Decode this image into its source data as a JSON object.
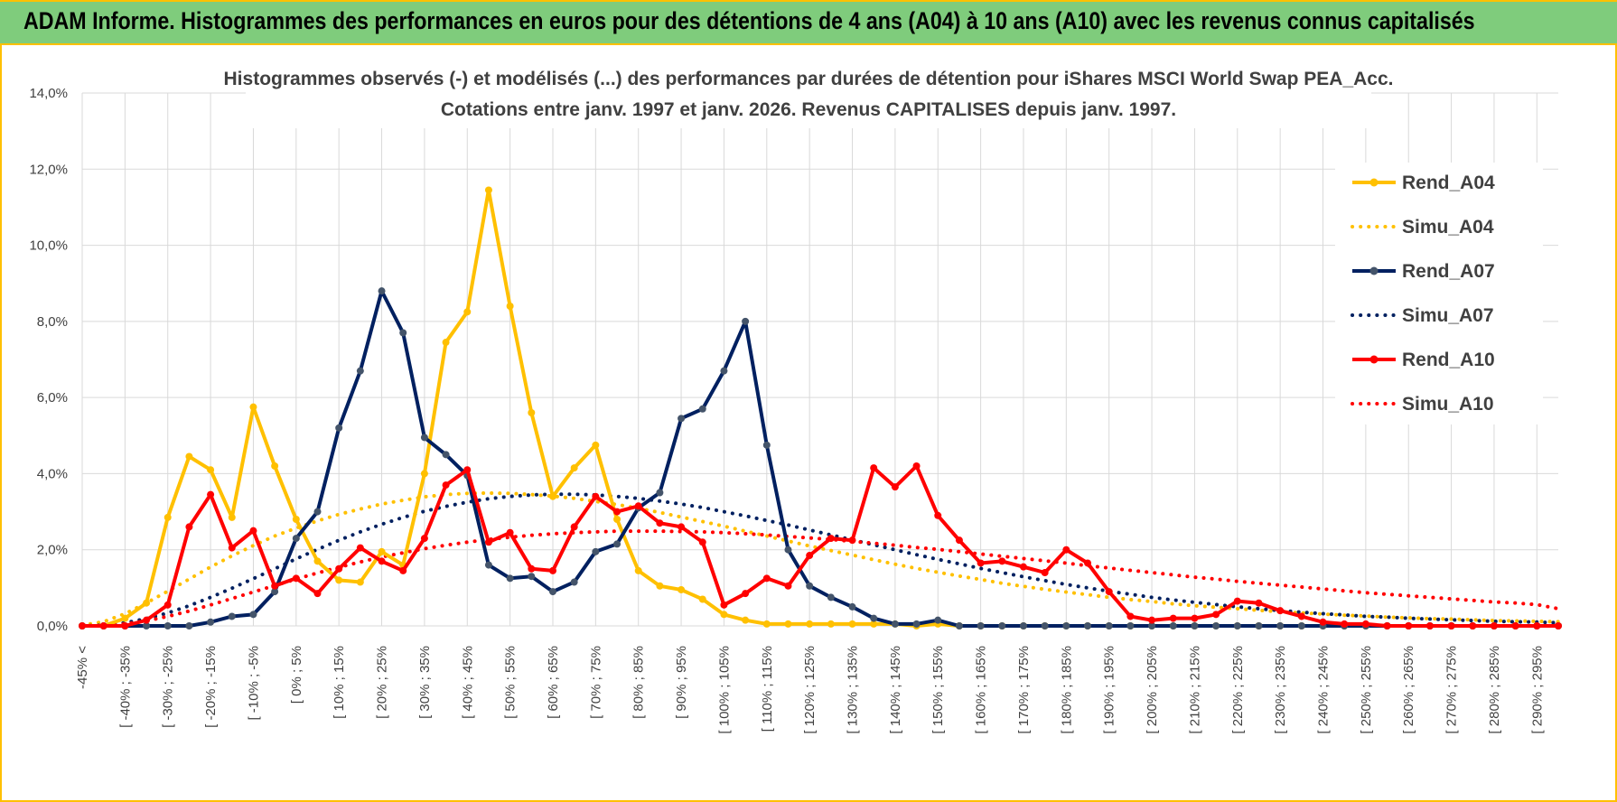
{
  "banner": {
    "title": "ADAM Informe. Histogrammes des performances en euros pour des détentions de 4 ans (A04) à 10 ans (A10) avec les revenus connus capitalisés"
  },
  "colors": {
    "banner_bg": "#7fcc7c",
    "frame": "#ffc000",
    "A04": "#ffc000",
    "A07": "#002060",
    "A10": "#ff0000",
    "grid": "#d9d9d9",
    "text": "#404040"
  },
  "chart_data": {
    "type": "line",
    "title_line1": "Histogrammes observés (-) et modélisés (...) des performances par durées de détention pour iShares MSCI World Swap PEA_Acc.",
    "title_line2": "Cotations entre janv. 1997 et janv. 2026. Revenus CAPITALISES depuis janv. 1997.",
    "ylim": [
      0,
      14
    ],
    "y_ticks": [
      "0,0%",
      "2,0%",
      "4,0%",
      "6,0%",
      "8,0%",
      "10,0%",
      "12,0%",
      "14,0%"
    ],
    "x_tick_labels": [
      "-45% <",
      "[ -40% ; -35%",
      "[ -30% ; -25%",
      "[ -20% ; -15%",
      "[ -10% ; -5%",
      "[ 0% ; 5%",
      "[ 10% ; 15%",
      "[ 20% ; 25%",
      "[ 30% ; 35%",
      "[ 40% ; 45%",
      "[ 50% ; 55%",
      "[ 60% ; 65%",
      "[ 70% ; 75%",
      "[ 80% ; 85%",
      "[ 90% ; 95%",
      "[ 100% ; 105%",
      "[ 110% ; 115%",
      "[ 120% ; 125%",
      "[ 130% ; 135%",
      "[ 140% ; 145%",
      "[ 150% ; 155%",
      "[ 160% ; 165%",
      "[ 170% ; 175%",
      "[ 180% ; 185%",
      "[ 190% ; 195%",
      "[ 200% ; 205%",
      "[ 210% ; 215%",
      "[ 220% ; 225%",
      "[ 230% ; 235%",
      "[ 240% ; 245%",
      "[ 250% ; 255%",
      "[ 260% ; 265%",
      "[ 270% ; 275%",
      "[ 280% ; 285%",
      "[ 290% ; 295%"
    ],
    "n_categories": 70,
    "series": [
      {
        "name": "Rend_A04",
        "style": "solid",
        "color_key": "A04",
        "values": [
          0.0,
          0.0,
          0.2,
          0.6,
          2.85,
          4.45,
          4.1,
          2.85,
          5.75,
          4.2,
          2.8,
          1.7,
          1.2,
          1.15,
          1.95,
          1.6,
          4.0,
          7.45,
          8.25,
          11.45,
          8.4,
          5.6,
          3.4,
          4.15,
          4.75,
          2.8,
          1.45,
          1.05,
          0.95,
          0.7,
          0.3,
          0.15,
          0.05,
          0.05,
          0.05,
          0.05,
          0.05,
          0.05,
          0.05,
          0.0,
          0.05,
          0.0,
          0.0,
          0.0,
          0.0,
          0.0,
          0.0,
          0.0,
          0.0,
          0.0,
          0.0,
          0.0,
          0.0,
          0.0,
          0.0,
          0.0,
          0.0,
          0.0,
          0.0,
          0.0,
          0.0,
          0.0,
          0.0,
          0.0,
          0.0,
          0.0,
          0.0,
          0.0,
          0.0,
          0.0
        ]
      },
      {
        "name": "Simu_A04",
        "style": "dotted",
        "color_key": "A04",
        "values": [
          0.02,
          0.11,
          0.32,
          0.6,
          0.91,
          1.23,
          1.55,
          1.84,
          2.11,
          2.36,
          2.57,
          2.76,
          2.93,
          3.07,
          3.2,
          3.3,
          3.39,
          3.45,
          3.48,
          3.49,
          3.48,
          3.45,
          3.41,
          3.35,
          3.27,
          3.19,
          3.09,
          2.98,
          2.86,
          2.74,
          2.62,
          2.49,
          2.36,
          2.23,
          2.1,
          1.98,
          1.86,
          1.74,
          1.62,
          1.51,
          1.41,
          1.31,
          1.22,
          1.12,
          1.04,
          0.96,
          0.89,
          0.82,
          0.75,
          0.69,
          0.64,
          0.58,
          0.53,
          0.49,
          0.45,
          0.41,
          0.37,
          0.34,
          0.31,
          0.28,
          0.26,
          0.23,
          0.21,
          0.19,
          0.18,
          0.16,
          0.14,
          0.13,
          0.12,
          0.11
        ]
      },
      {
        "name": "Rend_A07",
        "style": "solid",
        "color_key": "A07",
        "values": [
          0.0,
          0.0,
          0.0,
          0.0,
          0.0,
          0.0,
          0.1,
          0.25,
          0.3,
          0.9,
          2.3,
          3.0,
          5.2,
          6.7,
          8.8,
          7.7,
          4.95,
          4.5,
          3.95,
          1.6,
          1.25,
          1.3,
          0.9,
          1.15,
          1.95,
          2.15,
          3.1,
          3.5,
          5.45,
          5.7,
          6.7,
          8.0,
          4.75,
          2.0,
          1.05,
          0.75,
          0.5,
          0.2,
          0.05,
          0.05,
          0.15,
          0.0,
          0.0,
          0.0,
          0.0,
          0.0,
          0.0,
          0.0,
          0.0,
          0.0,
          0.0,
          0.0,
          0.0,
          0.0,
          0.0,
          0.0,
          0.0,
          0.0,
          0.0,
          0.0,
          0.0,
          0.0,
          0.0,
          0.0,
          0.0,
          0.0,
          0.0,
          0.0,
          0.0,
          0.0
        ]
      },
      {
        "name": "Simu_A07",
        "style": "dotted",
        "color_key": "A07",
        "values": [
          0.0,
          0.02,
          0.08,
          0.19,
          0.34,
          0.53,
          0.75,
          0.99,
          1.24,
          1.5,
          1.76,
          2.01,
          2.25,
          2.47,
          2.67,
          2.85,
          3.01,
          3.14,
          3.25,
          3.34,
          3.4,
          3.44,
          3.46,
          3.46,
          3.44,
          3.4,
          3.35,
          3.28,
          3.2,
          3.11,
          3.0,
          2.89,
          2.77,
          2.65,
          2.52,
          2.39,
          2.26,
          2.13,
          2.0,
          1.87,
          1.75,
          1.63,
          1.51,
          1.4,
          1.29,
          1.19,
          1.09,
          1.0,
          0.91,
          0.83,
          0.75,
          0.68,
          0.62,
          0.56,
          0.5,
          0.45,
          0.4,
          0.36,
          0.32,
          0.29,
          0.25,
          0.23,
          0.2,
          0.18,
          0.16,
          0.14,
          0.12,
          0.11,
          0.1,
          0.08
        ]
      },
      {
        "name": "Rend_A10",
        "style": "solid",
        "color_key": "A10",
        "values": [
          0.0,
          0.0,
          0.0,
          0.15,
          0.55,
          2.6,
          3.45,
          2.05,
          2.5,
          1.05,
          1.25,
          0.85,
          1.5,
          2.05,
          1.7,
          1.45,
          2.3,
          3.7,
          4.1,
          2.2,
          2.45,
          1.5,
          1.45,
          2.6,
          3.4,
          3.0,
          3.15,
          2.7,
          2.6,
          2.2,
          0.55,
          0.85,
          1.25,
          1.05,
          1.85,
          2.3,
          2.25,
          4.15,
          3.65,
          4.2,
          2.9,
          2.25,
          1.65,
          1.7,
          1.55,
          1.4,
          2.0,
          1.65,
          0.9,
          0.25,
          0.15,
          0.2,
          0.2,
          0.3,
          0.65,
          0.6,
          0.4,
          0.25,
          0.1,
          0.05,
          0.05,
          0.0,
          0.0,
          0.0,
          0.0,
          0.0,
          0.0,
          0.0,
          0.0,
          0.0
        ]
      },
      {
        "name": "Simu_A10",
        "style": "dotted",
        "color_key": "A10",
        "values": [
          0.0,
          0.01,
          0.05,
          0.13,
          0.25,
          0.39,
          0.55,
          0.72,
          0.89,
          1.06,
          1.23,
          1.39,
          1.54,
          1.68,
          1.81,
          1.92,
          2.03,
          2.12,
          2.2,
          2.27,
          2.33,
          2.38,
          2.42,
          2.45,
          2.47,
          2.49,
          2.49,
          2.49,
          2.48,
          2.47,
          2.45,
          2.42,
          2.39,
          2.35,
          2.31,
          2.27,
          2.22,
          2.17,
          2.12,
          2.06,
          2.01,
          1.95,
          1.89,
          1.83,
          1.77,
          1.71,
          1.65,
          1.58,
          1.52,
          1.46,
          1.4,
          1.34,
          1.28,
          1.23,
          1.17,
          1.12,
          1.07,
          1.02,
          0.97,
          0.92,
          0.87,
          0.83,
          0.79,
          0.75,
          0.71,
          0.67,
          0.63,
          0.6,
          0.56,
          0.45
        ]
      }
    ],
    "legend_position": "right"
  }
}
